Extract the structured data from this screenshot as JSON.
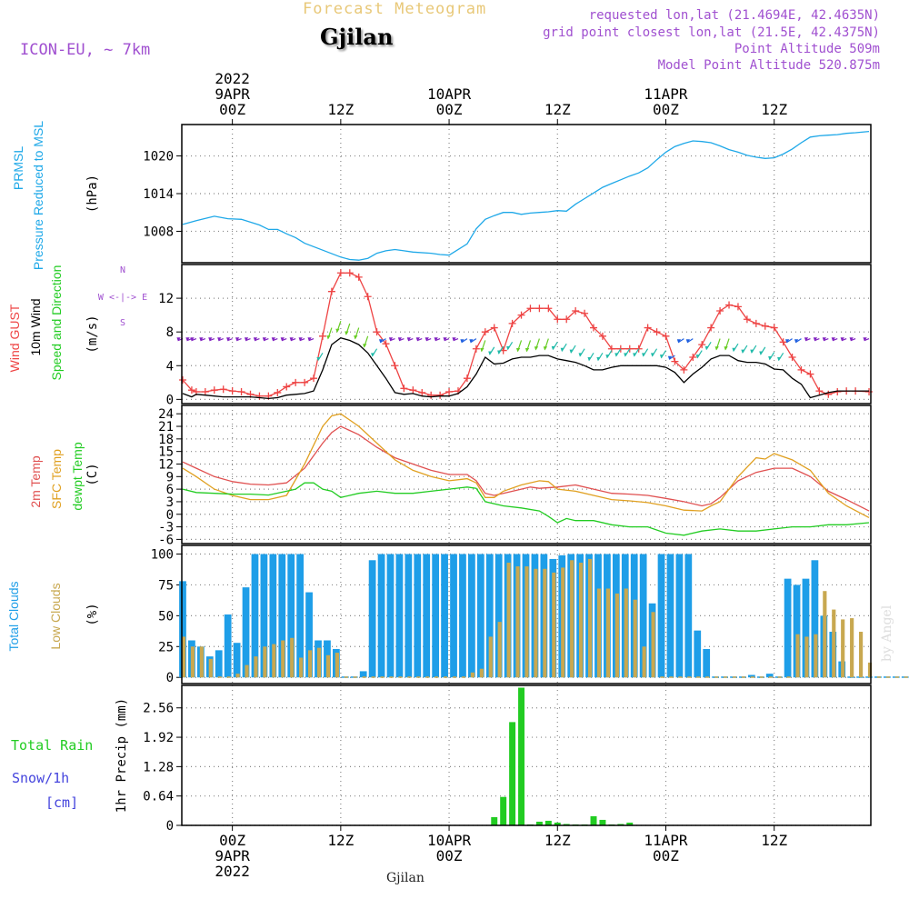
{
  "colors": {
    "pressure": "#1ea8e8",
    "gust": "#ee4444",
    "wind": "#000000",
    "t2m": "#e05050",
    "sfc": "#e0a020",
    "dewpt": "#22cc22",
    "totalcloud": "#1e9ee8",
    "lowcloud": "#c8a850",
    "rain": "#22cc22",
    "header_title": "#e8c878",
    "purple": "#a050d0",
    "snow": "#4444dd",
    "grid": "#888888"
  },
  "header": {
    "title": "Forecast Meteogram",
    "city": "Gjilan",
    "model": "ICON-EU, ~ 7km",
    "requested": "requested lon,lat (21.4694E, 42.4635N)",
    "gridpoint": "grid point closest lon,lat (21.5E, 42.4375N)",
    "altitude": "Point Altitude 509m",
    "model_altitude": "Model Point Altitude 520.875m",
    "footer_city": "Gjilan",
    "credit": "by Angel"
  },
  "time_axis": {
    "top_labels": [
      {
        "hour": 0,
        "lines": [
          "2022",
          "9APR",
          "00Z"
        ]
      },
      {
        "hour": 12,
        "lines": [
          "12Z"
        ]
      },
      {
        "hour": 24,
        "lines": [
          "10APR",
          "00Z"
        ]
      },
      {
        "hour": 36,
        "lines": [
          "12Z"
        ]
      },
      {
        "hour": 48,
        "lines": [
          "11APR",
          "00Z"
        ]
      },
      {
        "hour": 60,
        "lines": [
          "12Z"
        ]
      }
    ],
    "bottom_labels": [
      {
        "hour": 0,
        "lines": [
          "00Z",
          "9APR",
          "2022"
        ]
      },
      {
        "hour": 12,
        "lines": [
          "12Z"
        ]
      },
      {
        "hour": 24,
        "lines": [
          "10APR",
          "00Z"
        ]
      },
      {
        "hour": 36,
        "lines": [
          "12Z"
        ]
      },
      {
        "hour": 48,
        "lines": [
          "11APR",
          "00Z"
        ]
      },
      {
        "hour": 60,
        "lines": [
          "12Z"
        ]
      }
    ],
    "start_hour": -5.6,
    "end_hour": 70.7
  },
  "chart_data": [
    {
      "type": "line",
      "title": "PRMSL Pressure Reduced to MSL",
      "ylabel": "(hPa)",
      "side_labels": [
        "PRMSL",
        "Pressure Reduced to MSL"
      ],
      "ylim": [
        1003,
        1025
      ],
      "yticks": [
        1008,
        1014,
        1020
      ],
      "series": [
        {
          "name": "PRMSL",
          "x": [
            -5.5,
            -4,
            -2,
            -0.5,
            1,
            3,
            4,
            5,
            6,
            7,
            8,
            10,
            12,
            13,
            14,
            15,
            16,
            17,
            18,
            19,
            20,
            22,
            23,
            24,
            26,
            27,
            28,
            29,
            30,
            31,
            32,
            33,
            34,
            35,
            36,
            37,
            38,
            39,
            40,
            41,
            42,
            43,
            44,
            45,
            46,
            47,
            48,
            49,
            50,
            51,
            52,
            53,
            54,
            55,
            56,
            57,
            58,
            59,
            60,
            61,
            62,
            63,
            64,
            65,
            66,
            67,
            68,
            69,
            70.5
          ],
          "values": [
            1009.1,
            1009.7,
            1010.4,
            1010.0,
            1009.9,
            1009.0,
            1008.3,
            1008.3,
            1007.6,
            1007.0,
            1006.1,
            1005.0,
            1003.9,
            1003.5,
            1003.4,
            1003.7,
            1004.5,
            1004.9,
            1005.1,
            1004.9,
            1004.7,
            1004.5,
            1004.3,
            1004.2,
            1006.0,
            1008.4,
            1009.9,
            1010.5,
            1011.0,
            1011.0,
            1010.7,
            1010.9,
            1011.0,
            1011.1,
            1011.3,
            1011.2,
            1012.3,
            1013.2,
            1014.1,
            1015.0,
            1015.6,
            1016.2,
            1016.8,
            1017.3,
            1018.1,
            1019.4,
            1020.6,
            1021.5,
            1022.0,
            1022.4,
            1022.3,
            1022.1,
            1021.6,
            1021.0,
            1020.6,
            1020.1,
            1019.8,
            1019.6,
            1019.7,
            1020.3,
            1021.1,
            1022.1,
            1023.0,
            1023.2,
            1023.3,
            1023.4,
            1023.6,
            1023.7,
            1023.9
          ]
        }
      ]
    },
    {
      "type": "line",
      "title": "Wind GUST / 10m Wind Speed and Direction",
      "ylabel": "(m/s)",
      "side_labels": [
        "Wind GUST",
        "10m Wind",
        "Speed and Direction"
      ],
      "ylim": [
        -0.5,
        16
      ],
      "yticks": [
        0,
        4,
        8,
        12
      ],
      "compass": [
        "N",
        "W <-|-> E",
        "S"
      ],
      "series": [
        {
          "name": "Wind GUST",
          "x": [
            -5.5,
            -4.5,
            -4,
            -3,
            -2,
            -1,
            0,
            1,
            2,
            3,
            4,
            5,
            6,
            7,
            8,
            9,
            10,
            11,
            12,
            13,
            14,
            15,
            16,
            17,
            18,
            19,
            20,
            21,
            22,
            23,
            24,
            25,
            26,
            27,
            28,
            29,
            30,
            31,
            32,
            33,
            34,
            35,
            36,
            37,
            38,
            39,
            40,
            41,
            42,
            43,
            44,
            45,
            46,
            47,
            48,
            49,
            50,
            51,
            52,
            53,
            54,
            55,
            56,
            57,
            58,
            59,
            60,
            61,
            62,
            63,
            64,
            65,
            66,
            67,
            68,
            69,
            70.5
          ],
          "values": [
            2.3,
            1.1,
            0.9,
            0.9,
            1.1,
            1.2,
            1.0,
            0.9,
            0.6,
            0.4,
            0.4,
            0.8,
            1.5,
            2.0,
            2.0,
            2.5,
            7.5,
            12.8,
            15.0,
            15.0,
            14.5,
            12.2,
            8.0,
            6.6,
            4.0,
            1.3,
            1.1,
            0.8,
            0.5,
            0.5,
            0.9,
            1.0,
            2.5,
            6.0,
            8.0,
            8.5,
            5.8,
            9.0,
            10.0,
            10.8,
            10.8,
            10.8,
            9.5,
            9.5,
            10.5,
            10.2,
            8.5,
            7.5,
            6.0,
            6.0,
            6.0,
            6.0,
            8.5,
            8.0,
            7.5,
            4.5,
            3.5,
            5.0,
            6.5,
            8.5,
            10.5,
            11.2,
            11.0,
            9.5,
            9.0,
            8.7,
            8.5,
            6.8,
            5.0,
            3.5,
            3.0,
            1.0,
            0.6,
            0.9,
            1.0,
            1.0,
            0.9
          ]
        },
        {
          "name": "10m Wind",
          "x": [
            -5.5,
            -4.5,
            -4,
            -3,
            -2,
            -1,
            0,
            1,
            2,
            3,
            4,
            5,
            6,
            7,
            8,
            9,
            10,
            11,
            12,
            13,
            14,
            15,
            16,
            17,
            18,
            19,
            20,
            21,
            22,
            23,
            24,
            25,
            26,
            27,
            28,
            29,
            30,
            31,
            32,
            33,
            34,
            35,
            36,
            37,
            38,
            39,
            40,
            41,
            42,
            43,
            44,
            45,
            46,
            47,
            48,
            49,
            50,
            51,
            52,
            53,
            54,
            55,
            56,
            57,
            58,
            59,
            60,
            61,
            62,
            63,
            64,
            65,
            66,
            67,
            68,
            69,
            70.5
          ],
          "values": [
            0.7,
            0.3,
            0.6,
            0.5,
            0.4,
            0.3,
            0.3,
            0.3,
            0.3,
            0.2,
            0.1,
            0.2,
            0.5,
            0.6,
            0.7,
            1.0,
            3.5,
            6.5,
            7.3,
            7.0,
            6.5,
            5.5,
            4.0,
            2.5,
            0.8,
            0.6,
            0.7,
            0.4,
            0.3,
            0.4,
            0.4,
            0.7,
            1.5,
            3.0,
            5.0,
            4.2,
            4.3,
            4.8,
            5.0,
            5.0,
            5.2,
            5.2,
            4.8,
            4.6,
            4.4,
            4.0,
            3.5,
            3.5,
            3.8,
            4.0,
            4.0,
            4.0,
            4.0,
            4.0,
            3.8,
            3.2,
            2.0,
            3.0,
            3.8,
            4.8,
            5.2,
            5.2,
            4.6,
            4.4,
            4.4,
            4.2,
            3.6,
            3.5,
            2.5,
            1.8,
            0.2,
            0.5,
            0.8,
            1.0,
            1.0,
            1.0,
            1.0
          ]
        }
      ]
    },
    {
      "type": "line",
      "title": "2m Temp / SFC Temp / dewpt Temp",
      "ylabel": "(C)",
      "side_labels": [
        "2m Temp",
        "SFC Temp",
        "dewpt Temp"
      ],
      "ylim": [
        -7,
        26
      ],
      "yticks": [
        -6,
        -3,
        0,
        3,
        6,
        9,
        12,
        15,
        18,
        21,
        24
      ],
      "series": [
        {
          "name": "2m Temp",
          "x": [
            -5.5,
            -4,
            -2,
            0,
            2,
            4,
            6,
            8,
            10,
            11,
            12,
            14,
            16,
            18,
            20,
            22,
            24,
            26,
            27,
            28,
            29,
            30,
            32,
            33,
            34,
            36,
            38,
            40,
            42,
            44,
            46,
            48,
            50,
            52,
            53,
            54,
            56,
            58,
            60,
            62,
            64,
            66,
            68,
            70.5
          ],
          "values": [
            12.5,
            11.0,
            9.0,
            7.8,
            7.2,
            7.0,
            7.5,
            11.0,
            17.0,
            19.5,
            21.0,
            19.0,
            16.0,
            13.5,
            12.0,
            10.5,
            9.5,
            9.5,
            8.0,
            5.0,
            4.5,
            5.0,
            6.0,
            6.5,
            6.2,
            6.5,
            7.0,
            6.0,
            5.0,
            4.8,
            4.5,
            3.8,
            3.0,
            2.0,
            2.5,
            4.0,
            8.0,
            10.0,
            11.0,
            11.0,
            9.0,
            5.5,
            3.5,
            0.8
          ]
        },
        {
          "name": "SFC Temp",
          "x": [
            -5.5,
            -4,
            -2,
            0,
            2,
            4,
            6,
            8,
            10,
            11,
            12,
            13,
            14,
            16,
            18,
            20,
            22,
            24,
            26,
            27,
            28,
            29,
            30,
            32,
            34,
            35,
            36,
            38,
            40,
            42,
            44,
            46,
            48,
            50,
            52,
            53,
            54,
            56,
            58,
            59,
            60,
            62,
            64,
            66,
            68,
            70.5
          ],
          "values": [
            11.0,
            9.0,
            6.0,
            4.5,
            3.5,
            3.5,
            4.5,
            12.0,
            21.0,
            23.5,
            24.0,
            22.5,
            21.0,
            17.0,
            13.0,
            10.5,
            9.0,
            8.0,
            8.5,
            7.5,
            4.0,
            4.0,
            5.5,
            7.0,
            8.0,
            7.8,
            6.0,
            5.5,
            4.5,
            3.5,
            3.2,
            2.8,
            2.0,
            1.0,
            0.8,
            2.0,
            3.0,
            9.0,
            13.5,
            13.2,
            14.5,
            13.0,
            10.5,
            5.0,
            2.0,
            -0.8
          ]
        },
        {
          "name": "dewpt Temp",
          "x": [
            -5.5,
            -4,
            -2,
            0,
            2,
            4,
            6,
            7,
            8,
            9,
            10,
            11,
            12,
            14,
            16,
            18,
            20,
            22,
            24,
            26,
            27,
            28,
            30,
            32,
            34,
            35,
            36,
            37,
            38,
            40,
            42,
            44,
            46,
            48,
            50,
            52,
            54,
            56,
            58,
            60,
            62,
            64,
            66,
            68,
            70.5
          ],
          "values": [
            6.0,
            5.2,
            5.0,
            4.8,
            4.8,
            4.6,
            5.5,
            6.0,
            7.5,
            7.5,
            6.0,
            5.5,
            4.0,
            5.0,
            5.5,
            5.0,
            5.0,
            5.5,
            6.0,
            6.5,
            6.2,
            3.0,
            2.0,
            1.5,
            0.8,
            -0.5,
            -2.0,
            -1.0,
            -1.5,
            -1.5,
            -2.5,
            -3.0,
            -3.0,
            -4.5,
            -5.0,
            -4.0,
            -3.5,
            -4.0,
            -4.0,
            -3.5,
            -3.0,
            -3.0,
            -2.5,
            -2.5,
            -2.0
          ]
        }
      ]
    },
    {
      "type": "bar",
      "title": "Total Clouds / Low Clouds",
      "ylabel": "(%)",
      "side_labels": [
        "Total Clouds",
        "Low Clouds"
      ],
      "ylim": [
        -5,
        107
      ],
      "yticks": [
        0,
        25,
        50,
        75,
        100
      ],
      "x_start": -5.5,
      "x_step": 1,
      "series": [
        {
          "name": "Total Clouds",
          "values": [
            78,
            30,
            25,
            17,
            22,
            51,
            28,
            73,
            100,
            100,
            100,
            100,
            100,
            100,
            69,
            30,
            30,
            23,
            0,
            0,
            5,
            95,
            100,
            100,
            100,
            100,
            100,
            100,
            100,
            100,
            100,
            100,
            100,
            100,
            100,
            100,
            100,
            100,
            100,
            100,
            100,
            96,
            99,
            100,
            100,
            100,
            100,
            100,
            100,
            100,
            100,
            100,
            60,
            100,
            100,
            100,
            100,
            38,
            23,
            0,
            0,
            0,
            0,
            2,
            0,
            3,
            0,
            80,
            75,
            80,
            95,
            50,
            37,
            13,
            0,
            0,
            0,
            0,
            0,
            0,
            0
          ]
        },
        {
          "name": "Low Clouds",
          "values": [
            33,
            25,
            25,
            15,
            0,
            0,
            3,
            10,
            17,
            25,
            27,
            30,
            32,
            16,
            22,
            24,
            18,
            20,
            0,
            0,
            0,
            0,
            0,
            0,
            0,
            0,
            0,
            0,
            0,
            0,
            0,
            0,
            4,
            7,
            33,
            45,
            93,
            90,
            90,
            88,
            88,
            85,
            89,
            95,
            93,
            96,
            72,
            72,
            68,
            72,
            63,
            25,
            53,
            0,
            0,
            0,
            0,
            0,
            0,
            0,
            0,
            0,
            0,
            0,
            0,
            0,
            0,
            0,
            35,
            33,
            35,
            70,
            55,
            47,
            48,
            37,
            12,
            0,
            0,
            0,
            0
          ]
        }
      ]
    },
    {
      "type": "bar",
      "title": "1hr Precip (mm)",
      "ylabel": "1hr Precip (mm)",
      "side_labels": [
        "Total  Rain",
        "Snow/1h",
        "[cm]"
      ],
      "ylim": [
        0,
        3.05
      ],
      "yticks": [
        0,
        0.64,
        1.28,
        1.92,
        2.56
      ],
      "tick_labels": [
        "0",
        "0.64",
        "1.28",
        "1.92",
        "2.56"
      ],
      "x_start": 29,
      "x_step": 1,
      "series": [
        {
          "name": "Total Rain",
          "values": [
            0.18,
            0.62,
            2.25,
            3.0,
            0.0,
            0.08,
            0.1,
            0.06,
            0.03,
            0.02,
            0.0,
            0.2,
            0.12,
            0.0,
            0.03,
            0.06
          ]
        }
      ]
    }
  ]
}
